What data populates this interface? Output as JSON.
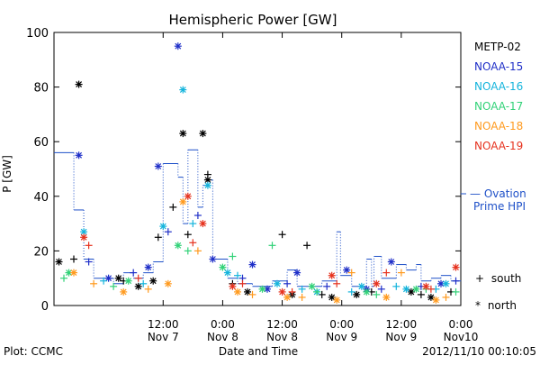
{
  "chart_data": {
    "type": "scatter",
    "title": "Hemispheric Power [GW]",
    "xlabel": "Date and Time",
    "ylabel": "P [GW]",
    "xlim": [
      "2012-11-06T14:00",
      "2012-11-10T00:00"
    ],
    "ylim": [
      0,
      100
    ],
    "yticks": [
      0,
      20,
      40,
      60,
      80,
      100
    ],
    "xticks": [
      {
        "t": "2012-11-07T12:00",
        "line1": "12:00",
        "line2": "Nov 7"
      },
      {
        "t": "2012-11-08T00:00",
        "line1": "0:00",
        "line2": "Nov 8"
      },
      {
        "t": "2012-11-08T12:00",
        "line1": "12:00",
        "line2": "Nov 8"
      },
      {
        "t": "2012-11-09T00:00",
        "line1": "0:00",
        "line2": "Nov 9"
      },
      {
        "t": "2012-11-09T12:00",
        "line1": "12:00",
        "line2": "Nov 9"
      },
      {
        "t": "2012-11-10T00:00",
        "line1": "0:00",
        "line2": "Nov10"
      }
    ],
    "legend": [
      {
        "name": "METP-02",
        "color": "#000000"
      },
      {
        "name": "NOAA-15",
        "color": "#1f2fc8"
      },
      {
        "name": "NOAA-16",
        "color": "#14b4dc"
      },
      {
        "name": "NOAA-17",
        "color": "#32d278"
      },
      {
        "name": "NOAA-18",
        "color": "#ff9a1e"
      },
      {
        "name": "NOAA-19",
        "color": "#e6321e"
      }
    ],
    "ovation": {
      "label_line1": "— Ovation",
      "label_line2": "Prime HPI",
      "color": "#1e50c8",
      "steps": [
        [
          "2012-11-06T14:00",
          56
        ],
        [
          "2012-11-06T18:00",
          35
        ],
        [
          "2012-11-06T20:00",
          17
        ],
        [
          "2012-11-06T22:00",
          10
        ],
        [
          "2012-11-07T02:00",
          8
        ],
        [
          "2012-11-07T04:00",
          12
        ],
        [
          "2012-11-07T06:00",
          10
        ],
        [
          "2012-11-07T08:00",
          12
        ],
        [
          "2012-11-07T10:00",
          16
        ],
        [
          "2012-11-07T12:00",
          52
        ],
        [
          "2012-11-07T15:00",
          47
        ],
        [
          "2012-11-07T16:00",
          30
        ],
        [
          "2012-11-07T17:00",
          57
        ],
        [
          "2012-11-07T19:00",
          36
        ],
        [
          "2012-11-07T20:00",
          44
        ],
        [
          "2012-11-07T21:00",
          46
        ],
        [
          "2012-11-07T22:00",
          17
        ],
        [
          "2012-11-08T01:00",
          10
        ],
        [
          "2012-11-08T03:00",
          8
        ],
        [
          "2012-11-08T06:00",
          7
        ],
        [
          "2012-11-08T10:00",
          9
        ],
        [
          "2012-11-08T13:00",
          13
        ],
        [
          "2012-11-08T15:00",
          7
        ],
        [
          "2012-11-08T20:00",
          9
        ],
        [
          "2012-11-08T23:00",
          27
        ],
        [
          "2012-11-08T23:45",
          11
        ],
        [
          "2012-11-09T02:00",
          7
        ],
        [
          "2012-11-09T05:00",
          17
        ],
        [
          "2012-11-09T06:00",
          7
        ],
        [
          "2012-11-09T06:30",
          18
        ],
        [
          "2012-11-09T08:00",
          10
        ],
        [
          "2012-11-09T11:00",
          15
        ],
        [
          "2012-11-09T13:00",
          13
        ],
        [
          "2012-11-09T15:00",
          15
        ],
        [
          "2012-11-09T16:00",
          9
        ],
        [
          "2012-11-09T18:00",
          10
        ],
        [
          "2012-11-09T20:00",
          11
        ],
        [
          "2012-11-09T22:00",
          9
        ],
        [
          "2012-11-10T00:00",
          9
        ]
      ]
    },
    "symbol_key": [
      {
        "symbol": "+",
        "label": "south"
      },
      {
        "symbol": "*",
        "label": "north"
      }
    ],
    "footer_left": "Plot: CCMC",
    "footer_right": "2012/11/10 00:10:05",
    "series": [
      {
        "name": "METP-02",
        "marker": "*",
        "points": [
          [
            "2012-11-06T15:00",
            16
          ],
          [
            "2012-11-06T19:00",
            81
          ],
          [
            "2012-11-07T03:00",
            10
          ],
          [
            "2012-11-07T16:00",
            63
          ],
          [
            "2012-11-07T20:00",
            63
          ],
          [
            "2012-11-07T21:00",
            46
          ],
          [
            "2012-11-07T10:00",
            9
          ],
          [
            "2012-11-08T05:00",
            5
          ],
          [
            "2012-11-08T14:00",
            4
          ],
          [
            "2012-11-08T22:00",
            3
          ],
          [
            "2012-11-09T03:00",
            4
          ],
          [
            "2012-11-09T14:00",
            5
          ],
          [
            "2012-11-09T18:00",
            3
          ],
          [
            "2012-11-07T07:00",
            7
          ]
        ]
      },
      {
        "name": "METP-02",
        "marker": "+",
        "points": [
          [
            "2012-11-06T18:00",
            17
          ],
          [
            "2012-11-07T04:00",
            9
          ],
          [
            "2012-11-07T11:00",
            25
          ],
          [
            "2012-11-07T14:00",
            36
          ],
          [
            "2012-11-07T17:00",
            26
          ],
          [
            "2012-11-07T21:00",
            48
          ],
          [
            "2012-11-08T12:00",
            26
          ],
          [
            "2012-11-08T17:00",
            22
          ],
          [
            "2012-11-08T02:00",
            8
          ],
          [
            "2012-11-08T20:00",
            4
          ],
          [
            "2012-11-09T06:00",
            5
          ],
          [
            "2012-11-09T16:00",
            4
          ],
          [
            "2012-11-09T22:00",
            5
          ]
        ]
      },
      {
        "name": "NOAA-15",
        "marker": "*",
        "points": [
          [
            "2012-11-06T19:00",
            55
          ],
          [
            "2012-11-07T11:00",
            51
          ],
          [
            "2012-11-07T15:00",
            95
          ],
          [
            "2012-11-07T09:00",
            14
          ],
          [
            "2012-11-07T22:00",
            17
          ],
          [
            "2012-11-08T06:00",
            15
          ],
          [
            "2012-11-08T15:00",
            12
          ],
          [
            "2012-11-09T01:00",
            13
          ],
          [
            "2012-11-09T10:00",
            16
          ],
          [
            "2012-11-09T20:00",
            8
          ],
          [
            "2012-11-07T01:00",
            10
          ],
          [
            "2012-11-08T09:00",
            6
          ],
          [
            "2012-11-09T05:00",
            6
          ]
        ]
      },
      {
        "name": "NOAA-15",
        "marker": "+",
        "points": [
          [
            "2012-11-06T21:00",
            16
          ],
          [
            "2012-11-07T06:00",
            12
          ],
          [
            "2012-11-07T13:00",
            27
          ],
          [
            "2012-11-07T19:00",
            33
          ],
          [
            "2012-11-08T04:00",
            10
          ],
          [
            "2012-11-08T13:00",
            8
          ],
          [
            "2012-11-08T21:00",
            7
          ],
          [
            "2012-11-09T08:00",
            6
          ],
          [
            "2012-11-09T16:00",
            7
          ],
          [
            "2012-11-09T23:00",
            9
          ]
        ]
      },
      {
        "name": "NOAA-16",
        "marker": "*",
        "points": [
          [
            "2012-11-06T20:00",
            27
          ],
          [
            "2012-11-07T16:00",
            79
          ],
          [
            "2012-11-07T21:00",
            44
          ],
          [
            "2012-11-07T12:00",
            29
          ],
          [
            "2012-11-08T01:00",
            12
          ],
          [
            "2012-11-08T11:00",
            8
          ],
          [
            "2012-11-08T19:00",
            5
          ],
          [
            "2012-11-09T04:00",
            7
          ],
          [
            "2012-11-09T13:00",
            6
          ],
          [
            "2012-11-09T21:00",
            8
          ]
        ]
      },
      {
        "name": "NOAA-16",
        "marker": "+",
        "points": [
          [
            "2012-11-07T00:00",
            9
          ],
          [
            "2012-11-07T08:00",
            8
          ],
          [
            "2012-11-07T18:00",
            30
          ],
          [
            "2012-11-08T03:00",
            11
          ],
          [
            "2012-11-08T16:00",
            6
          ],
          [
            "2012-11-09T02:00",
            5
          ],
          [
            "2012-11-09T11:00",
            7
          ],
          [
            "2012-11-09T19:00",
            6
          ]
        ]
      },
      {
        "name": "NOAA-17",
        "marker": "*",
        "points": [
          [
            "2012-11-06T17:00",
            12
          ],
          [
            "2012-11-07T05:00",
            9
          ],
          [
            "2012-11-07T15:00",
            22
          ],
          [
            "2012-11-08T00:00",
            14
          ],
          [
            "2012-11-08T08:00",
            6
          ],
          [
            "2012-11-08T18:00",
            7
          ],
          [
            "2012-11-09T05:00",
            5
          ],
          [
            "2012-11-09T15:00",
            6
          ]
        ]
      },
      {
        "name": "NOAA-17",
        "marker": "+",
        "points": [
          [
            "2012-11-06T16:00",
            10
          ],
          [
            "2012-11-07T02:00",
            7
          ],
          [
            "2012-11-07T17:00",
            20
          ],
          [
            "2012-11-08T02:00",
            18
          ],
          [
            "2012-11-08T10:00",
            22
          ],
          [
            "2012-11-08T19:00",
            5
          ],
          [
            "2012-11-09T07:00",
            4
          ],
          [
            "2012-11-09T17:00",
            6
          ],
          [
            "2012-11-09T23:00",
            5
          ]
        ]
      },
      {
        "name": "NOAA-18",
        "marker": "*",
        "points": [
          [
            "2012-11-06T18:00",
            12
          ],
          [
            "2012-11-07T04:00",
            5
          ],
          [
            "2012-11-07T16:00",
            38
          ],
          [
            "2012-11-08T03:00",
            5
          ],
          [
            "2012-11-08T13:00",
            3
          ],
          [
            "2012-11-08T23:00",
            2
          ],
          [
            "2012-11-09T09:00",
            3
          ],
          [
            "2012-11-09T19:00",
            2
          ],
          [
            "2012-11-07T13:00",
            8
          ]
        ]
      },
      {
        "name": "NOAA-18",
        "marker": "+",
        "points": [
          [
            "2012-11-06T22:00",
            8
          ],
          [
            "2012-11-07T09:00",
            6
          ],
          [
            "2012-11-07T19:00",
            20
          ],
          [
            "2012-11-08T06:00",
            4
          ],
          [
            "2012-11-08T16:00",
            3
          ],
          [
            "2012-11-09T02:00",
            12
          ],
          [
            "2012-11-09T12:00",
            12
          ],
          [
            "2012-11-09T21:00",
            3
          ]
        ]
      },
      {
        "name": "NOAA-19",
        "marker": "*",
        "points": [
          [
            "2012-11-06T20:00",
            25
          ],
          [
            "2012-11-07T17:00",
            40
          ],
          [
            "2012-11-07T20:00",
            30
          ],
          [
            "2012-11-08T02:00",
            7
          ],
          [
            "2012-11-08T12:00",
            5
          ],
          [
            "2012-11-08T22:00",
            11
          ],
          [
            "2012-11-09T07:00",
            8
          ],
          [
            "2012-11-09T17:00",
            7
          ],
          [
            "2012-11-09T23:00",
            14
          ]
        ]
      },
      {
        "name": "NOAA-19",
        "marker": "+",
        "points": [
          [
            "2012-11-06T21:00",
            22
          ],
          [
            "2012-11-07T07:00",
            10
          ],
          [
            "2012-11-07T18:00",
            23
          ],
          [
            "2012-11-08T04:00",
            8
          ],
          [
            "2012-11-08T14:00",
            5
          ],
          [
            "2012-11-08T23:00",
            8
          ],
          [
            "2012-11-09T09:00",
            12
          ],
          [
            "2012-11-09T18:00",
            6
          ]
        ]
      }
    ]
  }
}
